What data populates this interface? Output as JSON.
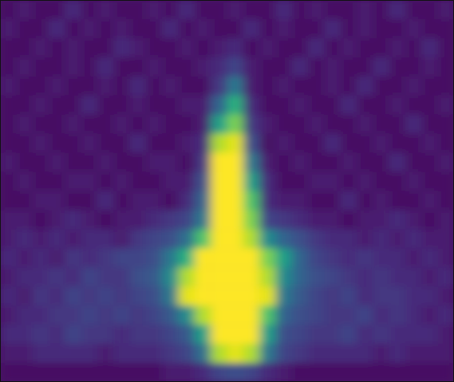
{
  "chart_data": {
    "type": "heatmap",
    "color": "viridis",
    "tick_labels": false,
    "zlim": [
      0,
      25
    ],
    "cells": [
      [
        1,
        2,
        1,
        1,
        3,
        1,
        2,
        1,
        1,
        2,
        1,
        3,
        1,
        1,
        2,
        1,
        1,
        3,
        1,
        2,
        1,
        1,
        2,
        1,
        3,
        1,
        1,
        2
      ],
      [
        2,
        1,
        1,
        3,
        1,
        2,
        1,
        2,
        1,
        1,
        3,
        1,
        2,
        1,
        1,
        3,
        1,
        2,
        1,
        1,
        3,
        1,
        2,
        1,
        1,
        2,
        1,
        1
      ],
      [
        1,
        1,
        2,
        1,
        2,
        1,
        1,
        3,
        2,
        1,
        1,
        2,
        1,
        2,
        3,
        1,
        2,
        1,
        1,
        3,
        1,
        2,
        1,
        1,
        2,
        1,
        3,
        1
      ],
      [
        1,
        2,
        1,
        1,
        2,
        1,
        3,
        1,
        1,
        2,
        1,
        1,
        2,
        3,
        5,
        2,
        1,
        1,
        3,
        1,
        2,
        1,
        1,
        3,
        1,
        1,
        2,
        1
      ],
      [
        2,
        1,
        1,
        2,
        1,
        1,
        2,
        1,
        3,
        1,
        2,
        1,
        1,
        4,
        10,
        2,
        1,
        2,
        1,
        1,
        2,
        1,
        3,
        1,
        1,
        2,
        1,
        1
      ],
      [
        1,
        1,
        2,
        1,
        1,
        3,
        1,
        1,
        2,
        1,
        1,
        2,
        2,
        8,
        16,
        3,
        1,
        1,
        2,
        1,
        1,
        3,
        1,
        1,
        2,
        1,
        1,
        2
      ],
      [
        1,
        2,
        1,
        1,
        2,
        1,
        1,
        2,
        1,
        2,
        1,
        1,
        2,
        14,
        20,
        4,
        2,
        1,
        1,
        2,
        1,
        1,
        2,
        1,
        1,
        3,
        1,
        1
      ],
      [
        1,
        1,
        2,
        1,
        1,
        2,
        1,
        1,
        3,
        1,
        1,
        2,
        3,
        22,
        24,
        6,
        1,
        2,
        1,
        1,
        3,
        1,
        1,
        2,
        1,
        1,
        2,
        1
      ],
      [
        2,
        1,
        1,
        2,
        1,
        1,
        2,
        1,
        1,
        2,
        2,
        1,
        4,
        25,
        25,
        10,
        2,
        1,
        2,
        1,
        1,
        2,
        1,
        1,
        3,
        1,
        1,
        2
      ],
      [
        1,
        2,
        1,
        1,
        2,
        2,
        1,
        2,
        1,
        1,
        2,
        2,
        6,
        25,
        25,
        14,
        3,
        1,
        1,
        2,
        2,
        1,
        2,
        1,
        1,
        2,
        1,
        1
      ],
      [
        1,
        1,
        2,
        2,
        1,
        1,
        3,
        1,
        2,
        2,
        1,
        3,
        8,
        25,
        25,
        18,
        3,
        2,
        2,
        1,
        1,
        3,
        1,
        2,
        1,
        1,
        2,
        1
      ],
      [
        2,
        2,
        1,
        2,
        3,
        2,
        1,
        2,
        2,
        3,
        4,
        5,
        10,
        25,
        25,
        20,
        5,
        4,
        3,
        2,
        2,
        1,
        2,
        2,
        3,
        2,
        1,
        2
      ],
      [
        2,
        3,
        2,
        3,
        2,
        3,
        3,
        2,
        4,
        5,
        6,
        9,
        18,
        25,
        25,
        22,
        12,
        8,
        6,
        4,
        3,
        3,
        2,
        3,
        2,
        3,
        2,
        2
      ],
      [
        3,
        2,
        3,
        2,
        4,
        3,
        4,
        5,
        5,
        6,
        10,
        16,
        25,
        25,
        25,
        25,
        20,
        14,
        8,
        5,
        4,
        3,
        4,
        3,
        3,
        2,
        3,
        2
      ],
      [
        2,
        3,
        3,
        4,
        3,
        5,
        4,
        4,
        6,
        7,
        12,
        22,
        25,
        25,
        25,
        25,
        22,
        12,
        8,
        6,
        5,
        4,
        3,
        4,
        3,
        3,
        2,
        3
      ],
      [
        3,
        2,
        4,
        3,
        5,
        4,
        5,
        4,
        5,
        6,
        10,
        24,
        25,
        25,
        25,
        25,
        24,
        10,
        7,
        5,
        4,
        5,
        3,
        4,
        4,
        3,
        3,
        2
      ],
      [
        2,
        3,
        3,
        4,
        4,
        5,
        4,
        5,
        4,
        5,
        7,
        12,
        22,
        25,
        25,
        25,
        18,
        8,
        6,
        5,
        4,
        4,
        5,
        3,
        4,
        3,
        2,
        3
      ],
      [
        3,
        3,
        4,
        3,
        5,
        4,
        4,
        3,
        4,
        4,
        5,
        7,
        14,
        25,
        25,
        25,
        14,
        6,
        5,
        4,
        4,
        5,
        3,
        4,
        3,
        3,
        3,
        2
      ],
      [
        2,
        2,
        3,
        3,
        3,
        3,
        2,
        3,
        3,
        3,
        4,
        5,
        9,
        22,
        24,
        22,
        10,
        5,
        4,
        3,
        3,
        3,
        3,
        2,
        3,
        2,
        2,
        2
      ],
      [
        1,
        1,
        1,
        1,
        1,
        1,
        1,
        1,
        1,
        1,
        2,
        2,
        3,
        5,
        6,
        5,
        3,
        2,
        1,
        1,
        1,
        1,
        1,
        1,
        1,
        1,
        1,
        1
      ]
    ]
  }
}
